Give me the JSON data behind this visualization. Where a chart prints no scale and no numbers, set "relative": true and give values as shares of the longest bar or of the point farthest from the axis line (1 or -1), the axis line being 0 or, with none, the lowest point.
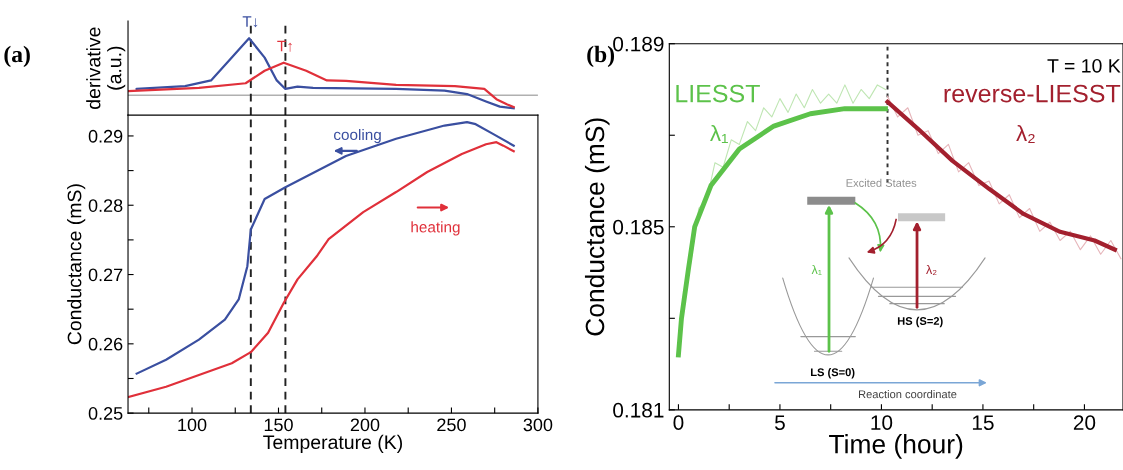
{
  "chart_data": [
    {
      "type": "line",
      "relative": true,
      "ylabel": "derivative\n(a.u.)",
      "xlim": [
        63,
        300
      ],
      "tick_labels": false,
      "legend": false,
      "grid": false,
      "series": [
        {
          "color": "#3a4fa0",
          "x": [
            68,
            96,
            111,
            123,
            133,
            142,
            149,
            154,
            161,
            170,
            218,
            246,
            259,
            270,
            278,
            286
          ],
          "values": [
            0.11,
            0.16,
            0.26,
            0.66,
            1.0,
            0.66,
            0.26,
            0.11,
            0.15,
            0.13,
            0.11,
            0.08,
            0.02,
            -0.11,
            -0.2,
            -0.23
          ]
        },
        {
          "color": "#e0303a",
          "x": [
            63,
            104,
            131,
            142,
            153,
            166,
            178,
            189,
            218,
            252,
            269,
            276,
            282,
            286
          ],
          "values": [
            0.07,
            0.13,
            0.21,
            0.43,
            0.57,
            0.43,
            0.26,
            0.25,
            0.18,
            0.16,
            0.11,
            -0.07,
            -0.16,
            -0.21
          ]
        }
      ],
      "ref_lines": [
        {
          "axis": "y",
          "value": 0,
          "color": "#b0b0b0"
        },
        {
          "axis": "x",
          "value": 134,
          "line_style": "dashed",
          "color": "#222222"
        },
        {
          "axis": "x",
          "value": 154,
          "line_style": "dashed",
          "color": "#222222"
        }
      ],
      "annotations": [
        {
          "text": "T↓",
          "x": 134,
          "y": 1.0
        },
        {
          "text": "T↑",
          "x": 154,
          "y": 0.57
        },
        "(a)"
      ]
    },
    {
      "type": "line",
      "xlabel": "Temperature (K)",
      "ylabel": "Conductance (mS)",
      "xlim": [
        63,
        300
      ],
      "ylim": [
        0.25,
        0.293
      ],
      "xticks": [
        {
          "value": 75,
          "label": null
        },
        100,
        {
          "value": 125,
          "label": null
        },
        150,
        {
          "value": 175,
          "label": null
        },
        200,
        {
          "value": 225,
          "label": null
        },
        250,
        {
          "value": 275,
          "label": null
        },
        300
      ],
      "yticks": [
        0.25,
        {
          "value": 0.255,
          "label": null
        },
        0.26,
        {
          "value": 0.265,
          "label": null
        },
        0.27,
        {
          "value": 0.275,
          "label": null
        },
        0.28,
        {
          "value": 0.285,
          "label": null
        },
        0.29
      ],
      "legend": false,
      "grid": false,
      "series": [
        {
          "color": "#3a4fa0",
          "x": [
            68,
            85,
            104,
            119,
            127,
            132,
            134,
            142,
            154,
            161,
            189,
            218,
            246,
            259,
            264,
            274,
            286
          ],
          "values": [
            0.2557,
            0.2577,
            0.2606,
            0.2635,
            0.2664,
            0.2712,
            0.2765,
            0.2809,
            0.2826,
            0.2835,
            0.2871,
            0.2896,
            0.2915,
            0.292,
            0.2917,
            0.2903,
            0.2886
          ]
        },
        {
          "color": "#e0303a",
          "x": [
            63,
            85,
            104,
            123,
            134,
            144,
            153,
            161,
            172,
            179,
            199,
            218,
            236,
            256,
            270,
            276,
            280,
            286
          ],
          "values": [
            0.2523,
            0.2538,
            0.2555,
            0.2572,
            0.2588,
            0.2616,
            0.2659,
            0.2693,
            0.2726,
            0.2751,
            0.279,
            0.2819,
            0.2848,
            0.2874,
            0.2888,
            0.2891,
            0.2886,
            0.2878
          ]
        }
      ],
      "ref_lines": [
        {
          "axis": "x",
          "value": 134,
          "line_style": "dashed",
          "color": "#222222"
        },
        {
          "axis": "x",
          "value": 154,
          "line_style": "dashed",
          "color": "#222222"
        }
      ],
      "annotations": [
        "cooling",
        "heating"
      ]
    },
    {
      "type": "line",
      "xlabel": "Time (hour)",
      "ylabel": "Conductance (mS)",
      "xlim": [
        -0.45,
        21.9
      ],
      "ylim": [
        0.181,
        0.189
      ],
      "xticks": [
        0,
        {
          "value": 2.5,
          "label": null
        },
        5,
        {
          "value": 7.5,
          "label": null
        },
        10,
        {
          "value": 12.5,
          "label": null
        },
        15,
        {
          "value": 17.5,
          "label": null
        },
        20
      ],
      "yticks": [
        0.181,
        {
          "value": 0.183,
          "label": null
        },
        0.185,
        {
          "value": 0.187,
          "label": null
        },
        0.189
      ],
      "legend": false,
      "grid": false,
      "series": [
        {
          "color": "#bfe6b3",
          "x": [
            0,
            0.3,
            0.6,
            1,
            1.4,
            1.8,
            2.2,
            2.6,
            3,
            3.4,
            3.8,
            4.2,
            4.6,
            5,
            5.4,
            5.8,
            6.2,
            6.6,
            7,
            7.4,
            7.8,
            8.2,
            8.6,
            9,
            9.4,
            9.8,
            10.2
          ],
          "values": [
            0.1823,
            0.1836,
            0.1842,
            0.1854,
            0.1856,
            0.1864,
            0.1863,
            0.1869,
            0.1868,
            0.1873,
            0.1871,
            0.1876,
            0.1874,
            0.1878,
            0.1875,
            0.1879,
            0.1876,
            0.188,
            0.1877,
            0.1879,
            0.1877,
            0.1881,
            0.1877,
            0.188,
            0.1878,
            0.1881,
            0.188
          ]
        },
        {
          "color": "#e6b5ba",
          "x": [
            10.3,
            10.8,
            11.3,
            11.8,
            12.3,
            12.8,
            13.3,
            13.8,
            14.3,
            14.8,
            15.3,
            15.8,
            16.3,
            16.8,
            17.3,
            17.8,
            18.3,
            18.8,
            19.3,
            19.8,
            20.3,
            20.8,
            21.3,
            21.8
          ],
          "values": [
            0.18785,
            0.1874,
            0.1876,
            0.187,
            0.1871,
            0.1866,
            0.1868,
            0.1862,
            0.1864,
            0.1859,
            0.186,
            0.1855,
            0.1857,
            0.1852,
            0.1854,
            0.1849,
            0.1851,
            0.1847,
            0.1849,
            0.1845,
            0.1848,
            0.1844,
            0.1847,
            0.1843
          ]
        },
        {
          "color": "#5cc24a",
          "x": [
            0,
            0.15,
            0.5,
            0.8,
            1.6,
            3.0,
            4.7,
            6.5,
            8.2,
            10.2
          ],
          "values": [
            0.1822,
            0.183,
            0.1841,
            0.185,
            0.1859,
            0.1867,
            0.1872,
            0.18747,
            0.18758,
            0.18758
          ]
        },
        {
          "color": "#a3202e",
          "x": [
            10.3,
            11.8,
            13.5,
            15.3,
            17.0,
            18.8,
            20.5,
            21.5
          ],
          "values": [
            0.18773,
            0.18714,
            0.18644,
            0.18583,
            0.18528,
            0.18489,
            0.1847,
            0.1845
          ]
        }
      ],
      "ref_lines": [
        {
          "axis": "x",
          "value": 10.3,
          "line_style": "dotted",
          "color": "#333333"
        }
      ],
      "annotations": [
        "(b)",
        "T = 10 K",
        "LIESST",
        "λ₁",
        "reverse-LIESST",
        "λ₂",
        "Excited States",
        "λ₁",
        "λ₂",
        "HS (S=2)",
        "LS (S=0)",
        "Reaction coordinate"
      ]
    }
  ]
}
